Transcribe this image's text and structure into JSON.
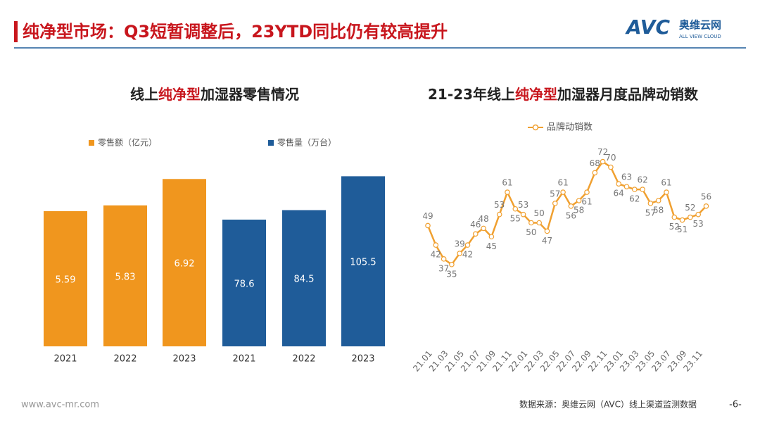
{
  "header": {
    "title": "纯净型市场：Q3短暂调整后，23YTD同比仍有较高提升",
    "logo": "AVC",
    "logo_cn": "奥维云网",
    "logo_en": "ALL VIEW CLOUD"
  },
  "chart_data": [
    {
      "type": "bar",
      "title": [
        "线上",
        "纯净型",
        "加湿器零售情况"
      ],
      "categories": [
        "2021",
        "2022",
        "2023"
      ],
      "series": [
        {
          "name": "零售额（亿元）",
          "color": "#f0961e",
          "values": [
            5.59,
            5.83,
            6.92
          ]
        },
        {
          "name": "零售量（万台）",
          "color": "#1f5c99",
          "values": [
            78.6,
            84.5,
            105.5
          ],
          "axis": "y2"
        }
      ],
      "ylim": [
        0,
        8.5
      ],
      "y2lim": [
        0,
        127.5
      ]
    },
    {
      "type": "line",
      "title": [
        "21-23年线上",
        "纯净型",
        "加湿器月度品牌动销数"
      ],
      "categories": [
        "21.01",
        null,
        "21.03",
        null,
        "21.05",
        null,
        "21.07",
        null,
        "21.09",
        null,
        "21.11",
        null,
        "22.01",
        null,
        "22.03",
        null,
        "22.05",
        null,
        "22.07",
        null,
        "22.09",
        null,
        "22.11",
        null,
        "23.01",
        null,
        "23.03",
        null,
        "23.05",
        null,
        "23.07",
        null,
        "23.09",
        null,
        "23.11",
        null
      ],
      "series": [
        {
          "name": "品牌动销数",
          "color": "#f0a030",
          "values": [
            49,
            42,
            37,
            35,
            39,
            42,
            46,
            48,
            45,
            53,
            61,
            55,
            53,
            50,
            50,
            47,
            57,
            61,
            56,
            58,
            61,
            68,
            72,
            70,
            64,
            63,
            62,
            62,
            57,
            58,
            61,
            52,
            51,
            52,
            53,
            56
          ]
        }
      ],
      "ylim": [
        20,
        80
      ]
    }
  ],
  "footer": {
    "url": "www.avc-mr.com",
    "source": "数据来源：奥维云网（AVC）线上渠道监测数据",
    "page": "-6-"
  }
}
